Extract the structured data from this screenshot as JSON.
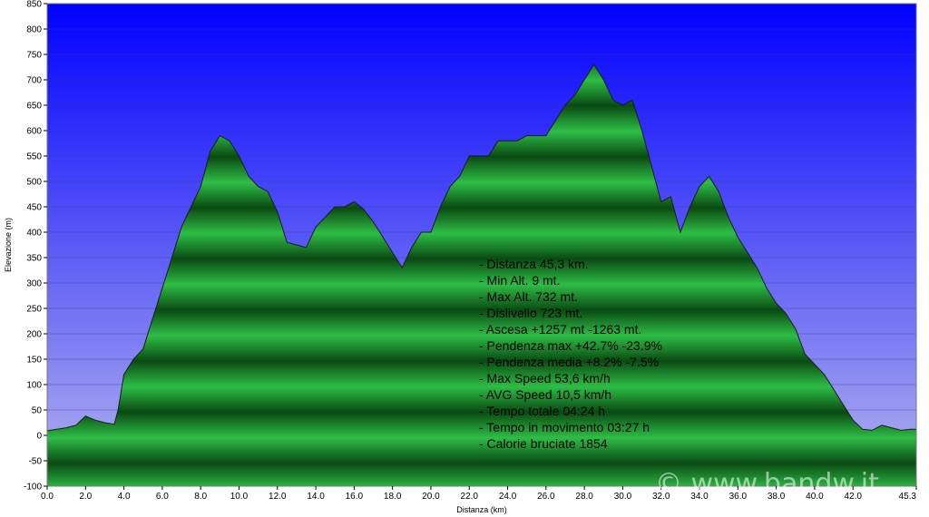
{
  "chart_data": {
    "type": "area",
    "xlabel": "Distanza (km)",
    "ylabel": "Elevazione (m)",
    "xlim": [
      0,
      45.3
    ],
    "ylim": [
      -100,
      850
    ],
    "x_ticks": [
      "0.0",
      "2.0",
      "4.0",
      "6.0",
      "8.0",
      "10.0",
      "12.0",
      "14.0",
      "16.0",
      "18.0",
      "20.0",
      "22.0",
      "24.0",
      "26.0",
      "28.0",
      "30.0",
      "32.0",
      "34.0",
      "36.0",
      "38.0",
      "40.0",
      "42.0",
      "45.3"
    ],
    "y_ticks": [
      -100,
      -50,
      0,
      50,
      100,
      150,
      200,
      250,
      300,
      350,
      400,
      450,
      500,
      550,
      600,
      650,
      700,
      750,
      800,
      850
    ],
    "series": [
      {
        "x": [
          0,
          0.5,
          1,
          1.5,
          2,
          2.5,
          3,
          3.5,
          3.7,
          4,
          4.5,
          5,
          5.5,
          6,
          6.5,
          7,
          7.5,
          8,
          8.5,
          9,
          9.5,
          10,
          10.5,
          11,
          11.5,
          12,
          12.5,
          13,
          13.5,
          14,
          14.5,
          15,
          15.5,
          16,
          16.5,
          17,
          17.5,
          18,
          18.5,
          19,
          19.5,
          20,
          20.5,
          21,
          21.5,
          22,
          22.5,
          23,
          23.5,
          24,
          24.5,
          25,
          25.5,
          26,
          26.5,
          27,
          27.5,
          28,
          28.5,
          29,
          29.5,
          30,
          30.5,
          31,
          31.5,
          32,
          32.5,
          33,
          33.5,
          34,
          34.5,
          35,
          35.5,
          36,
          36.5,
          37,
          37.5,
          38,
          38.5,
          39,
          39.5,
          40,
          40.5,
          41,
          41.5,
          42,
          42.5,
          43,
          43.5,
          44,
          44.5,
          45,
          45.3
        ],
        "y": [
          9,
          12,
          15,
          20,
          38,
          30,
          25,
          22,
          50,
          120,
          150,
          170,
          230,
          290,
          350,
          410,
          450,
          490,
          560,
          590,
          580,
          550,
          510,
          490,
          480,
          440,
          380,
          375,
          370,
          410,
          430,
          450,
          450,
          460,
          445,
          420,
          390,
          360,
          330,
          370,
          400,
          400,
          450,
          490,
          510,
          550,
          550,
          550,
          580,
          580,
          580,
          590,
          590,
          590,
          620,
          650,
          670,
          700,
          730,
          700,
          660,
          650,
          660,
          600,
          530,
          460,
          470,
          400,
          450,
          490,
          510,
          480,
          430,
          390,
          360,
          330,
          290,
          260,
          240,
          210,
          160,
          140,
          120,
          90,
          60,
          30,
          12,
          10,
          20,
          15,
          10,
          12,
          12
        ]
      }
    ]
  },
  "stats": [
    "- Distanza 45,3 km.",
    "- Min Alt. 9 mt.",
    "- Max Alt. 732 mt.",
    "- Dislivello 723 mt.",
    "- Ascesa +1257 mt -1263 mt.",
    "- Pendenza max +42.7% -23.9%",
    "- Pendenza media +8.2% -7.5%",
    "- Max Speed 53,6 km/h",
    "- AVG Speed 10,5 km/h",
    "- Tempo totale 04:24 h",
    "- Tempo in movimento 03:27 h",
    "- Calorie bruciate 1854"
  ],
  "watermark": "© www.bandw.it",
  "colors": {
    "sky_top": "#0000ff",
    "sky_bottom": "#b4b4ee",
    "area_dark": "#0a4a12",
    "area_light": "#2ebd46",
    "outline": "#1c1c1c"
  }
}
